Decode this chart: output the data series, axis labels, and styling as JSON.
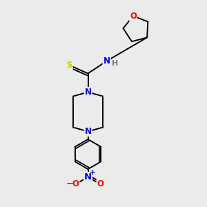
{
  "bg_color": "#ebebeb",
  "bond_color": "#000000",
  "atom_colors": {
    "O": "#ff0000",
    "N": "#0000ff",
    "S": "#cccc00",
    "H": "#708090",
    "C": "#000000"
  },
  "font_size": 8.5,
  "line_width": 1.4
}
